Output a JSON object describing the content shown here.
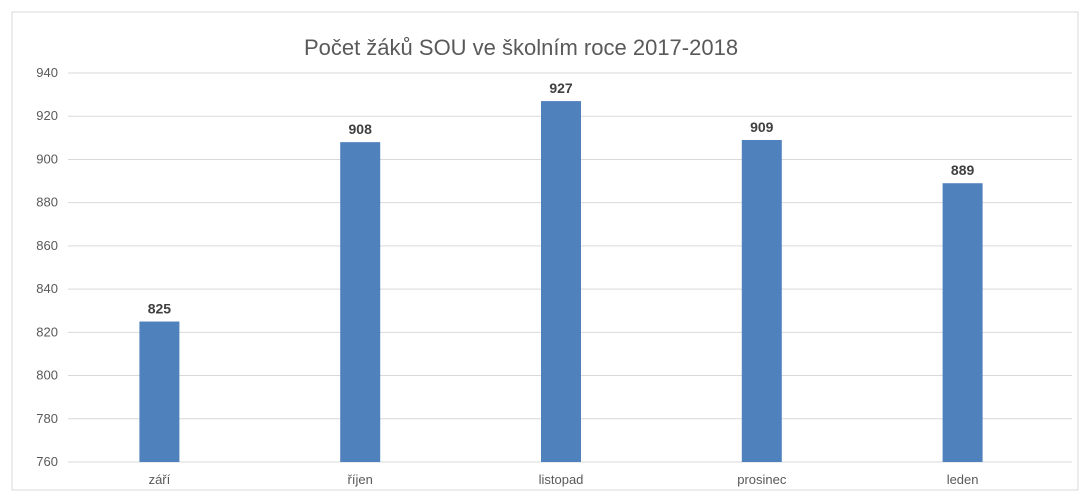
{
  "chart_data": {
    "type": "bar",
    "title": "Počet žáků SOU ve školním roce 2017-2018",
    "xlabel": "",
    "ylabel": "",
    "categories": [
      "září",
      "říjen",
      "listopad",
      "prosinec",
      "leden"
    ],
    "values": [
      825,
      908,
      927,
      909,
      889
    ],
    "ylim": [
      760,
      940
    ],
    "yticks": [
      760,
      780,
      800,
      820,
      840,
      860,
      880,
      900,
      920,
      940
    ],
    "grid": true,
    "legend": "none",
    "bar_color": "#4f81bd"
  }
}
